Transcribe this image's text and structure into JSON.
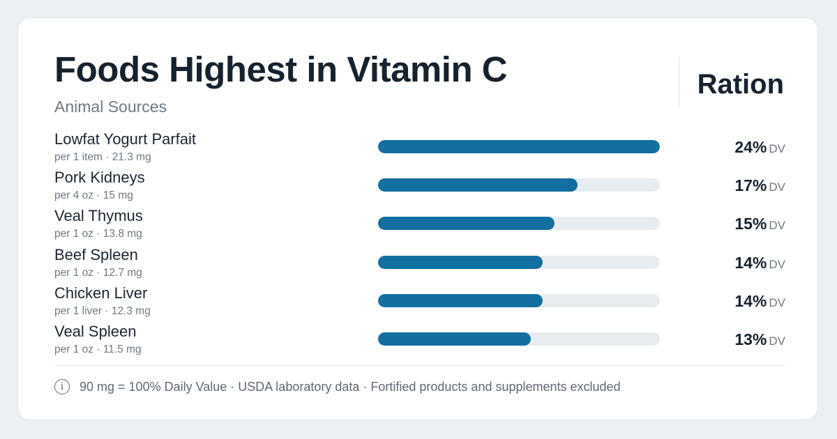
{
  "header": {
    "title": "Foods Highest in Vitamin C",
    "subtitle": "Animal Sources",
    "brand": "Ration"
  },
  "colors": {
    "bar_fill": "#136fa0",
    "bar_track": "#e7ecf0"
  },
  "chart_data": {
    "type": "bar",
    "orientation": "horizontal",
    "categories": [
      "Lowfat Yogurt Parfait",
      "Pork Kidneys",
      "Veal Thymus",
      "Beef Spleen",
      "Chicken Liver",
      "Veal Spleen"
    ],
    "servings": [
      "per 1 item · 21.3 mg",
      "per 4 oz · 15 mg",
      "per 1 oz · 13.8 mg",
      "per 1 oz · 12.7 mg",
      "per 1 liver · 12.3 mg",
      "per 1 oz · 11.5 mg"
    ],
    "mg_values": [
      21.3,
      15,
      13.8,
      12.7,
      12.3,
      11.5
    ],
    "value_labels": [
      "24%",
      "17%",
      "15%",
      "14%",
      "14%",
      "13%"
    ],
    "unit": "DV",
    "bar_fraction_of_max": [
      1.0,
      0.707,
      0.627,
      0.584,
      0.584,
      0.541
    ]
  },
  "footer": {
    "icon": "info-icon",
    "icon_glyph": "i",
    "note": "90 mg = 100% Daily Value · USDA laboratory data · Fortified products and supplements excluded"
  }
}
